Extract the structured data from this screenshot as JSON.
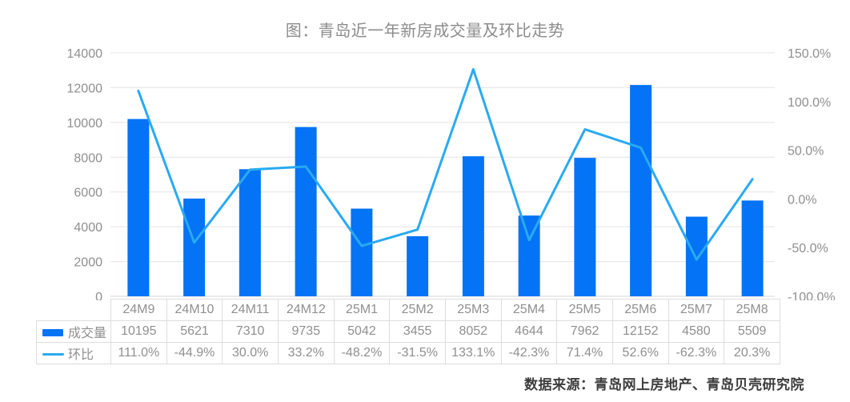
{
  "title": "图：青岛近一年新房成交量及环比走势",
  "source": "数据来源：青岛网上房地产、青岛贝壳研究院",
  "colors": {
    "bar": "#0473f5",
    "line": "#29aaf0",
    "gridline": "#e4e4e4",
    "axis_line": "#d6d6d6",
    "axis_text": "#8f8f8f",
    "table_border": "#dddddd",
    "table_text": "#8f8f8f",
    "title_text": "#8c8c8c",
    "source_text": "#3d3d3d"
  },
  "chart_data": {
    "type": "combo-bar-line",
    "title": "图：青岛近一年新房成交量及环比走势",
    "categories": [
      "24M9",
      "24M10",
      "24M11",
      "24M12",
      "25M1",
      "25M2",
      "25M3",
      "25M4",
      "25M5",
      "25M6",
      "25M7",
      "25M8"
    ],
    "series": [
      {
        "name": "成交量",
        "type": "bar",
        "axis": "left",
        "values": [
          10195,
          5621,
          7310,
          9735,
          5042,
          3455,
          8052,
          4644,
          7962,
          12152,
          4580,
          5509
        ]
      },
      {
        "name": "环比",
        "type": "line",
        "axis": "right",
        "values_percent": [
          111.0,
          -44.9,
          30.0,
          33.2,
          -48.2,
          -31.5,
          133.1,
          -42.3,
          71.4,
          52.6,
          -62.3,
          20.3
        ]
      }
    ],
    "left_axis": {
      "min": 0,
      "max": 14000,
      "step": 2000,
      "ticks": [
        "0",
        "2000",
        "4000",
        "6000",
        "8000",
        "10000",
        "12000",
        "14000"
      ]
    },
    "right_axis": {
      "min": -100,
      "max": 150,
      "step": 50,
      "ticks": [
        "-100.0%",
        "-50.0%",
        "0.0%",
        "50.0%",
        "100.0%",
        "150.0%"
      ]
    },
    "grid": "horizontal",
    "legend_position": "table-left"
  },
  "table": {
    "corner_label": "",
    "header_row": [
      "24M9",
      "24M10",
      "24M11",
      "24M12",
      "25M1",
      "25M2",
      "25M3",
      "25M4",
      "25M5",
      "25M6",
      "25M7",
      "25M8"
    ],
    "rows": [
      {
        "label": "成交量",
        "swatch": "bar",
        "cells": [
          "10195",
          "5621",
          "7310",
          "9735",
          "5042",
          "3455",
          "8052",
          "4644",
          "7962",
          "12152",
          "4580",
          "5509"
        ]
      },
      {
        "label": "环比",
        "swatch": "line",
        "cells": [
          "111.0%",
          "-44.9%",
          "30.0%",
          "33.2%",
          "-48.2%",
          "-31.5%",
          "133.1%",
          "-42.3%",
          "71.4%",
          "52.6%",
          "-62.3%",
          "20.3%"
        ]
      }
    ]
  }
}
